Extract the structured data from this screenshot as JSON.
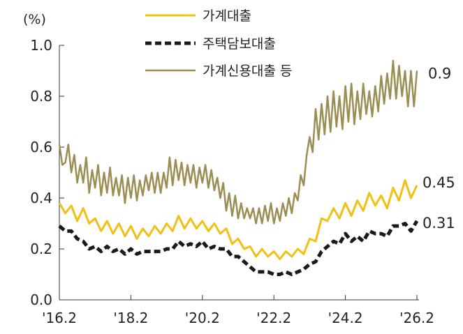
{
  "chart_data": {
    "type": "line",
    "ylabel": "(%)",
    "ylim": [
      0.0,
      1.0
    ],
    "yticks": [
      "0.0",
      "0.2",
      "0.4",
      "0.6",
      "0.8",
      "1.0"
    ],
    "xlim": [
      2016.083,
      2026.083
    ],
    "xticks": [
      {
        "label": "'16.2",
        "value": 2016.083
      },
      {
        "label": "'18.2",
        "value": 2018.083
      },
      {
        "label": "'20.2",
        "value": 2020.083
      },
      {
        "label": "'22.2",
        "value": 2022.083
      },
      {
        "label": "'24.2",
        "value": 2024.083
      },
      {
        "label": "'26.2",
        "value": 2026.083
      }
    ],
    "legend": "top-center",
    "series": [
      {
        "name": "가계대출",
        "color": "#F2C014",
        "style": "solid",
        "end_label": "0.45",
        "points": [
          [
            2016.083,
            0.38
          ],
          [
            2016.25,
            0.34
          ],
          [
            2016.417,
            0.37
          ],
          [
            2016.583,
            0.31
          ],
          [
            2016.75,
            0.36
          ],
          [
            2016.917,
            0.3
          ],
          [
            2017.083,
            0.32
          ],
          [
            2017.25,
            0.27
          ],
          [
            2017.417,
            0.31
          ],
          [
            2017.583,
            0.26
          ],
          [
            2017.75,
            0.3
          ],
          [
            2017.917,
            0.25
          ],
          [
            2018.083,
            0.29
          ],
          [
            2018.25,
            0.24
          ],
          [
            2018.417,
            0.28
          ],
          [
            2018.583,
            0.25
          ],
          [
            2018.75,
            0.29
          ],
          [
            2018.917,
            0.26
          ],
          [
            2019.083,
            0.3
          ],
          [
            2019.25,
            0.27
          ],
          [
            2019.417,
            0.33
          ],
          [
            2019.583,
            0.28
          ],
          [
            2019.75,
            0.32
          ],
          [
            2019.917,
            0.28
          ],
          [
            2020.083,
            0.31
          ],
          [
            2020.25,
            0.27
          ],
          [
            2020.417,
            0.3
          ],
          [
            2020.583,
            0.26
          ],
          [
            2020.75,
            0.28
          ],
          [
            2020.917,
            0.22
          ],
          [
            2021.083,
            0.24
          ],
          [
            2021.25,
            0.2
          ],
          [
            2021.417,
            0.21
          ],
          [
            2021.583,
            0.17
          ],
          [
            2021.75,
            0.2
          ],
          [
            2021.917,
            0.17
          ],
          [
            2022.083,
            0.19
          ],
          [
            2022.25,
            0.16
          ],
          [
            2022.417,
            0.19
          ],
          [
            2022.583,
            0.17
          ],
          [
            2022.75,
            0.2
          ],
          [
            2022.917,
            0.18
          ],
          [
            2023.083,
            0.24
          ],
          [
            2023.25,
            0.23
          ],
          [
            2023.417,
            0.32
          ],
          [
            2023.583,
            0.31
          ],
          [
            2023.75,
            0.36
          ],
          [
            2023.917,
            0.32
          ],
          [
            2024.083,
            0.38
          ],
          [
            2024.25,
            0.33
          ],
          [
            2024.417,
            0.39
          ],
          [
            2024.583,
            0.35
          ],
          [
            2024.75,
            0.42
          ],
          [
            2024.917,
            0.37
          ],
          [
            2025.083,
            0.41
          ],
          [
            2025.25,
            0.36
          ],
          [
            2025.417,
            0.44
          ],
          [
            2025.583,
            0.39
          ],
          [
            2025.75,
            0.47
          ],
          [
            2025.917,
            0.4
          ],
          [
            2026.083,
            0.45
          ]
        ]
      },
      {
        "name": "주택담보대출",
        "color": "#1A1A1A",
        "style": "dashed",
        "end_label": "0.31",
        "points": [
          [
            2016.083,
            0.29
          ],
          [
            2016.25,
            0.27
          ],
          [
            2016.417,
            0.27
          ],
          [
            2016.583,
            0.24
          ],
          [
            2016.75,
            0.23
          ],
          [
            2016.917,
            0.2
          ],
          [
            2017.083,
            0.21
          ],
          [
            2017.25,
            0.19
          ],
          [
            2017.417,
            0.21
          ],
          [
            2017.583,
            0.19
          ],
          [
            2017.75,
            0.2
          ],
          [
            2017.917,
            0.18
          ],
          [
            2018.083,
            0.2
          ],
          [
            2018.25,
            0.18
          ],
          [
            2018.417,
            0.19
          ],
          [
            2018.583,
            0.19
          ],
          [
            2018.75,
            0.19
          ],
          [
            2018.917,
            0.19
          ],
          [
            2019.083,
            0.2
          ],
          [
            2019.25,
            0.2
          ],
          [
            2019.417,
            0.23
          ],
          [
            2019.583,
            0.21
          ],
          [
            2019.75,
            0.22
          ],
          [
            2019.917,
            0.21
          ],
          [
            2020.083,
            0.23
          ],
          [
            2020.25,
            0.2
          ],
          [
            2020.417,
            0.21
          ],
          [
            2020.583,
            0.2
          ],
          [
            2020.75,
            0.2
          ],
          [
            2020.917,
            0.17
          ],
          [
            2021.083,
            0.17
          ],
          [
            2021.25,
            0.15
          ],
          [
            2021.417,
            0.13
          ],
          [
            2021.583,
            0.11
          ],
          [
            2021.75,
            0.11
          ],
          [
            2021.917,
            0.11
          ],
          [
            2022.083,
            0.1
          ],
          [
            2022.25,
            0.1
          ],
          [
            2022.417,
            0.11
          ],
          [
            2022.583,
            0.1
          ],
          [
            2022.75,
            0.11
          ],
          [
            2022.917,
            0.12
          ],
          [
            2023.083,
            0.14
          ],
          [
            2023.25,
            0.15
          ],
          [
            2023.417,
            0.19
          ],
          [
            2023.583,
            0.21
          ],
          [
            2023.75,
            0.23
          ],
          [
            2023.917,
            0.22
          ],
          [
            2024.083,
            0.26
          ],
          [
            2024.25,
            0.23
          ],
          [
            2024.417,
            0.25
          ],
          [
            2024.583,
            0.23
          ],
          [
            2024.75,
            0.27
          ],
          [
            2024.917,
            0.26
          ],
          [
            2025.083,
            0.26
          ],
          [
            2025.25,
            0.25
          ],
          [
            2025.417,
            0.29
          ],
          [
            2025.583,
            0.29
          ],
          [
            2025.75,
            0.3
          ],
          [
            2025.917,
            0.27
          ],
          [
            2026.083,
            0.31
          ]
        ]
      },
      {
        "name": "가계신용대출 등",
        "color": "#9C8E52",
        "style": "solid",
        "end_label": "0.9",
        "points": [
          [
            2016.083,
            0.61
          ],
          [
            2016.167,
            0.53
          ],
          [
            2016.25,
            0.54
          ],
          [
            2016.333,
            0.61
          ],
          [
            2016.417,
            0.5
          ],
          [
            2016.5,
            0.57
          ],
          [
            2016.583,
            0.46
          ],
          [
            2016.667,
            0.53
          ],
          [
            2016.75,
            0.46
          ],
          [
            2016.833,
            0.56
          ],
          [
            2016.917,
            0.42
          ],
          [
            2017.0,
            0.51
          ],
          [
            2017.083,
            0.44
          ],
          [
            2017.167,
            0.53
          ],
          [
            2017.25,
            0.41
          ],
          [
            2017.333,
            0.5
          ],
          [
            2017.417,
            0.42
          ],
          [
            2017.5,
            0.52
          ],
          [
            2017.583,
            0.41
          ],
          [
            2017.667,
            0.48
          ],
          [
            2017.75,
            0.41
          ],
          [
            2017.833,
            0.49
          ],
          [
            2017.917,
            0.38
          ],
          [
            2018.0,
            0.48
          ],
          [
            2018.083,
            0.4
          ],
          [
            2018.167,
            0.49
          ],
          [
            2018.25,
            0.39
          ],
          [
            2018.333,
            0.47
          ],
          [
            2018.417,
            0.41
          ],
          [
            2018.5,
            0.49
          ],
          [
            2018.583,
            0.43
          ],
          [
            2018.667,
            0.5
          ],
          [
            2018.75,
            0.42
          ],
          [
            2018.833,
            0.5
          ],
          [
            2018.917,
            0.42
          ],
          [
            2019.0,
            0.5
          ],
          [
            2019.083,
            0.44
          ],
          [
            2019.167,
            0.56
          ],
          [
            2019.25,
            0.45
          ],
          [
            2019.333,
            0.55
          ],
          [
            2019.417,
            0.47
          ],
          [
            2019.5,
            0.54
          ],
          [
            2019.583,
            0.45
          ],
          [
            2019.667,
            0.53
          ],
          [
            2019.75,
            0.46
          ],
          [
            2019.833,
            0.53
          ],
          [
            2019.917,
            0.44
          ],
          [
            2020.0,
            0.52
          ],
          [
            2020.083,
            0.46
          ],
          [
            2020.167,
            0.53
          ],
          [
            2020.25,
            0.44
          ],
          [
            2020.333,
            0.51
          ],
          [
            2020.417,
            0.43
          ],
          [
            2020.5,
            0.48
          ],
          [
            2020.583,
            0.4
          ],
          [
            2020.667,
            0.46
          ],
          [
            2020.75,
            0.35
          ],
          [
            2020.833,
            0.42
          ],
          [
            2020.917,
            0.33
          ],
          [
            2021.0,
            0.41
          ],
          [
            2021.083,
            0.32
          ],
          [
            2021.167,
            0.38
          ],
          [
            2021.25,
            0.32
          ],
          [
            2021.333,
            0.36
          ],
          [
            2021.417,
            0.32
          ],
          [
            2021.5,
            0.36
          ],
          [
            2021.583,
            0.3
          ],
          [
            2021.667,
            0.36
          ],
          [
            2021.75,
            0.3
          ],
          [
            2021.833,
            0.37
          ],
          [
            2021.917,
            0.31
          ],
          [
            2022.0,
            0.38
          ],
          [
            2022.083,
            0.3
          ],
          [
            2022.167,
            0.36
          ],
          [
            2022.25,
            0.31
          ],
          [
            2022.333,
            0.38
          ],
          [
            2022.417,
            0.33
          ],
          [
            2022.5,
            0.4
          ],
          [
            2022.583,
            0.34
          ],
          [
            2022.667,
            0.42
          ],
          [
            2022.75,
            0.39
          ],
          [
            2022.833,
            0.49
          ],
          [
            2022.917,
            0.45
          ],
          [
            2023.0,
            0.57
          ],
          [
            2023.083,
            0.64
          ],
          [
            2023.167,
            0.58
          ],
          [
            2023.25,
            0.75
          ],
          [
            2023.333,
            0.63
          ],
          [
            2023.417,
            0.77
          ],
          [
            2023.5,
            0.65
          ],
          [
            2023.583,
            0.8
          ],
          [
            2023.667,
            0.66
          ],
          [
            2023.75,
            0.82
          ],
          [
            2023.833,
            0.68
          ],
          [
            2023.917,
            0.8
          ],
          [
            2024.0,
            0.67
          ],
          [
            2024.083,
            0.84
          ],
          [
            2024.167,
            0.7
          ],
          [
            2024.25,
            0.85
          ],
          [
            2024.333,
            0.69
          ],
          [
            2024.417,
            0.82
          ],
          [
            2024.5,
            0.71
          ],
          [
            2024.583,
            0.85
          ],
          [
            2024.667,
            0.73
          ],
          [
            2024.75,
            0.82
          ],
          [
            2024.833,
            0.72
          ],
          [
            2024.917,
            0.84
          ],
          [
            2025.0,
            0.74
          ],
          [
            2025.083,
            0.88
          ],
          [
            2025.167,
            0.77
          ],
          [
            2025.25,
            0.89
          ],
          [
            2025.333,
            0.79
          ],
          [
            2025.417,
            0.94
          ],
          [
            2025.5,
            0.79
          ],
          [
            2025.583,
            0.92
          ],
          [
            2025.667,
            0.8
          ],
          [
            2025.75,
            0.9
          ],
          [
            2025.833,
            0.76
          ],
          [
            2025.917,
            0.9
          ],
          [
            2026.0,
            0.76
          ],
          [
            2026.083,
            0.9
          ]
        ]
      }
    ]
  }
}
